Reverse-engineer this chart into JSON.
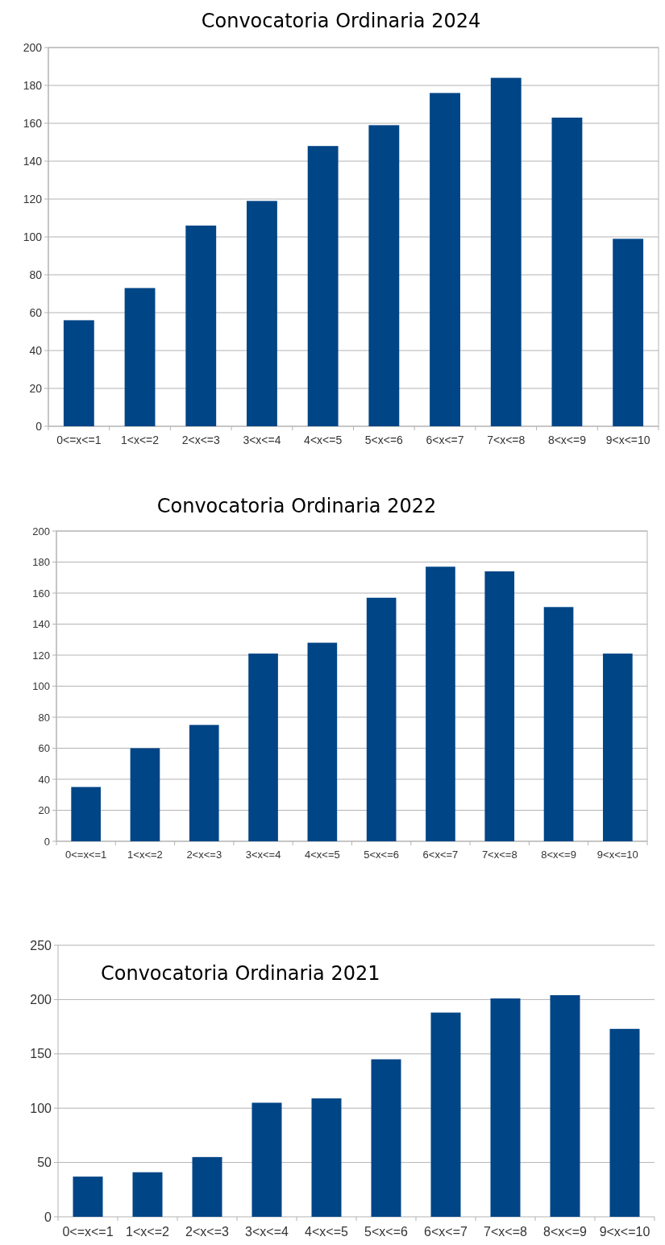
{
  "chart_data": [
    {
      "type": "bar",
      "title": "Convocatoria Ordinaria 2024",
      "categories": [
        "0<=x<=1",
        "1<x<=2",
        "2<x<=3",
        "3<x<=4",
        "4<x<=5",
        "5<x<=6",
        "6<x<=7",
        "7<x<=8",
        "8<x<=9",
        "9<x<=10"
      ],
      "values": [
        56,
        73,
        106,
        119,
        148,
        159,
        176,
        184,
        163,
        99
      ],
      "color": "#004586",
      "ylim": [
        0,
        200
      ],
      "yticks": [
        0,
        20,
        40,
        60,
        80,
        100,
        120,
        140,
        160,
        180,
        200
      ],
      "grid": "y"
    },
    {
      "type": "bar",
      "title": "Convocatoria Ordinaria 2022",
      "categories": [
        "0<=x<=1",
        "1<x<=2",
        "2<x<=3",
        "3<x<=4",
        "4<x<=5",
        "5<x<=6",
        "6<x<=7",
        "7<x<=8",
        "8<x<=9",
        "9<x<=10"
      ],
      "values": [
        35,
        60,
        75,
        121,
        128,
        157,
        177,
        174,
        151,
        121
      ],
      "color": "#004586",
      "ylim": [
        0,
        200
      ],
      "yticks": [
        0,
        20,
        40,
        60,
        80,
        100,
        120,
        140,
        160,
        180,
        200
      ],
      "grid": "y"
    },
    {
      "type": "bar",
      "title": "Convocatoria Ordinaria 2021",
      "categories": [
        "0<=x<=1",
        "1<x<=2",
        "2<x<=3",
        "3<x<=4",
        "4<x<=5",
        "5<x<=6",
        "6<x<=7",
        "7<x<=8",
        "8<x<=9",
        "9<x<=10"
      ],
      "values": [
        37,
        41,
        55,
        105,
        109,
        145,
        188,
        201,
        204,
        173
      ],
      "color": "#004586",
      "ylim": [
        0,
        250
      ],
      "yticks": [
        0,
        50,
        100,
        150,
        200,
        250
      ],
      "grid": "y"
    }
  ]
}
